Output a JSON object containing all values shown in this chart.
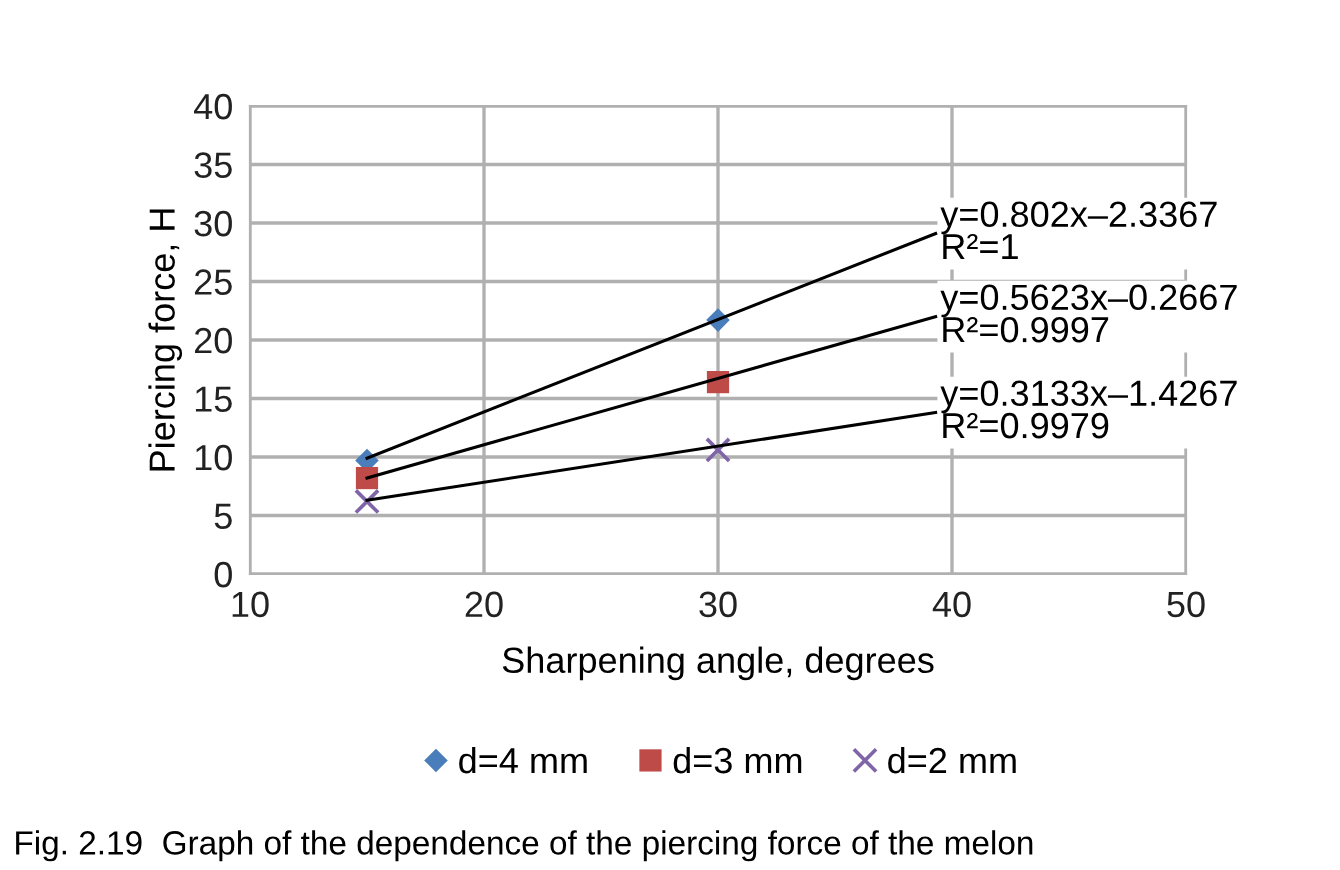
{
  "chart_data": {
    "type": "scatter",
    "xlabel": "Sharpening angle, degrees",
    "ylabel": "Piercing force, H",
    "xlim": [
      10,
      50
    ],
    "xticks": [
      10,
      20,
      30,
      40,
      50
    ],
    "ylim": [
      0,
      40
    ],
    "yticks": [
      0,
      5,
      10,
      15,
      20,
      25,
      30,
      35,
      40
    ],
    "grid": true,
    "legend": "bottom",
    "series": [
      {
        "name": "d=4 mm",
        "color": "#4a7ebb",
        "marker": "diamond",
        "x": [
          15,
          30
        ],
        "values": [
          9.7,
          21.7
        ]
      },
      {
        "name": "d=3 mm",
        "color": "#be4b48",
        "marker": "square",
        "x": [
          15,
          30
        ],
        "values": [
          8.2,
          16.4
        ]
      },
      {
        "name": "d=2 mm",
        "color": "#7f64a8",
        "marker": "cross",
        "x": [
          15,
          30
        ],
        "values": [
          6.2,
          10.6
        ]
      },
      {
        "type": "line",
        "color": "#000000",
        "x": [
          15,
          39.3
        ],
        "values": [
          9.9,
          29.1
        ]
      },
      {
        "type": "line",
        "color": "#000000",
        "x": [
          15,
          39.3
        ],
        "values": [
          8.2,
          22.0
        ]
      },
      {
        "type": "line",
        "color": "#000000",
        "x": [
          15,
          39.3
        ],
        "values": [
          6.3,
          13.8
        ]
      }
    ],
    "annotations": [
      "y=0.802x–2.3367\nR²=1",
      "y=0.5623x–0.2667\nR²=0.9997",
      "y=0.3133x–1.4267\nR²=0.9979",
      "Fig. 2.19  Graph of the dependence of the piercing force of the melon"
    ]
  }
}
